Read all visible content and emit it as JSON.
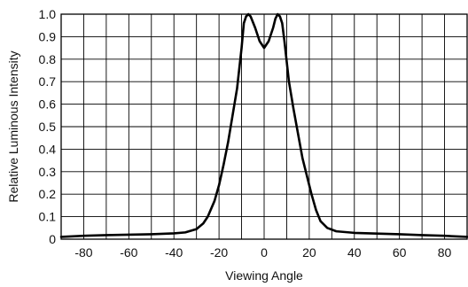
{
  "chart_data": {
    "type": "line",
    "title": "",
    "xlabel": "Viewing Angle",
    "ylabel": "Relative Luminous Intensity",
    "xlim": [
      -90,
      90
    ],
    "ylim": [
      0,
      1.0
    ],
    "grid": true,
    "x_major_ticks": [
      -80,
      -60,
      -40,
      -20,
      0,
      20,
      40,
      60,
      80
    ],
    "x_tick_labels": [
      "-80",
      "-60",
      "-40",
      "-20",
      "0",
      "20",
      "40",
      "60",
      "80"
    ],
    "x_grid_step": 10,
    "y_ticks": [
      0,
      0.1,
      0.2,
      0.3,
      0.4,
      0.5,
      0.6,
      0.7,
      0.8,
      0.9,
      1.0
    ],
    "y_tick_labels": [
      "0",
      "0.1",
      "0.2",
      "0.3",
      "0.4",
      "0.5",
      "0.6",
      "0.7",
      "0.8",
      "0.9",
      "1.0"
    ],
    "series": [
      {
        "color": "#000000",
        "points": [
          [
            -90,
            0.01
          ],
          [
            -80,
            0.015
          ],
          [
            -70,
            0.018
          ],
          [
            -60,
            0.02
          ],
          [
            -50,
            0.022
          ],
          [
            -40,
            0.026
          ],
          [
            -35,
            0.03
          ],
          [
            -30,
            0.045
          ],
          [
            -27,
            0.07
          ],
          [
            -25,
            0.1
          ],
          [
            -22,
            0.17
          ],
          [
            -20,
            0.24
          ],
          [
            -18,
            0.33
          ],
          [
            -16,
            0.43
          ],
          [
            -14,
            0.55
          ],
          [
            -12,
            0.67
          ],
          [
            -10,
            0.85
          ],
          [
            -9,
            0.96
          ],
          [
            -8,
            0.99
          ],
          [
            -7,
            1.0
          ],
          [
            -6,
            0.99
          ],
          [
            -4,
            0.94
          ],
          [
            -2,
            0.88
          ],
          [
            0,
            0.85
          ],
          [
            2,
            0.88
          ],
          [
            4,
            0.94
          ],
          [
            5,
            0.98
          ],
          [
            6,
            1.0
          ],
          [
            7,
            0.99
          ],
          [
            8,
            0.96
          ],
          [
            9,
            0.88
          ],
          [
            11,
            0.7
          ],
          [
            13,
            0.58
          ],
          [
            15,
            0.47
          ],
          [
            17,
            0.36
          ],
          [
            19,
            0.28
          ],
          [
            21,
            0.2
          ],
          [
            23,
            0.13
          ],
          [
            25,
            0.08
          ],
          [
            28,
            0.05
          ],
          [
            32,
            0.035
          ],
          [
            40,
            0.028
          ],
          [
            50,
            0.025
          ],
          [
            60,
            0.022
          ],
          [
            70,
            0.018
          ],
          [
            80,
            0.015
          ],
          [
            90,
            0.01
          ]
        ]
      }
    ]
  }
}
